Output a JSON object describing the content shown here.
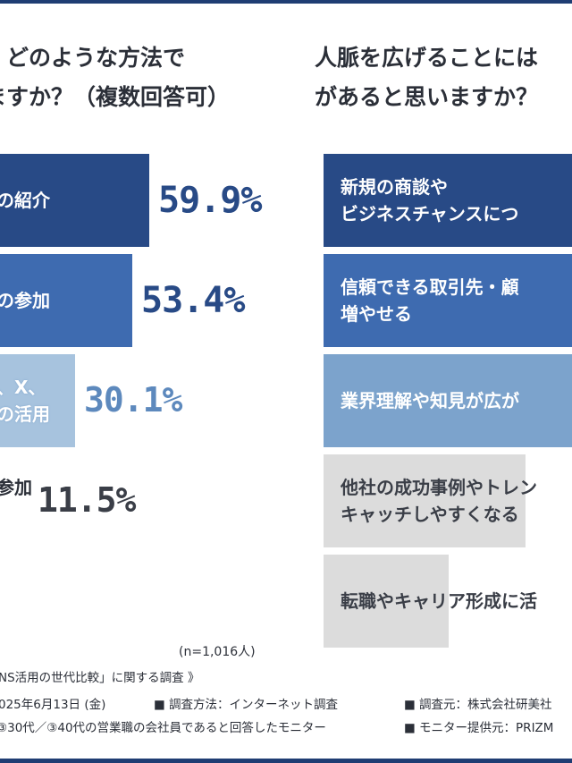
{
  "left_panel": {
    "title_lines": [
      "、どのような方法で",
      "ますか？（複数回答可）"
    ],
    "sample_size": "(n=1,016人)"
  },
  "right_panel": {
    "title_lines": [
      "人脈を広げることには",
      "があると思いますか？"
    ]
  },
  "footer": {
    "line1": "NS活用の世代比較」に関する調査 》",
    "line2_date": "025年6月13日 (金)",
    "line2_method": "■ 調査方法：インターネット調査",
    "line2_source": "■ 調査元：株式会社研美社",
    "line3_target": "③30代／③40代の営業職の会社員であると回答したモニター",
    "line3_provider": "■ モニター提供元：PRIZM"
  },
  "chart_data": [
    {
      "type": "bar",
      "orientation": "horizontal",
      "categories": [
        "の紹介",
        "の参加",
        "、X、\nの活用",
        "\n参加"
      ],
      "values": [
        59.9,
        53.4,
        30.1,
        11.5
      ],
      "value_labels": [
        "59.9%",
        "53.4%",
        "30.1%",
        "11.5%"
      ],
      "unit": "%",
      "colors": [
        "#284a86",
        "#3e6bb0",
        "#a7c3de",
        "#ffffff"
      ]
    },
    {
      "type": "bar",
      "orientation": "horizontal",
      "categories": [
        "新規の商談や\nビジネスチャンスにつ",
        "信頼できる取引先・顧\n増やせる",
        "業界理解や知見が広が",
        "他社の成功事例やトレン\nキャッチしやすくなる",
        "転職やキャリア形成に活"
      ],
      "colors": [
        "#284a86",
        "#3e6bb0",
        "#7ca3cc",
        "#dcdcdc",
        "#dcdcdc"
      ]
    }
  ]
}
